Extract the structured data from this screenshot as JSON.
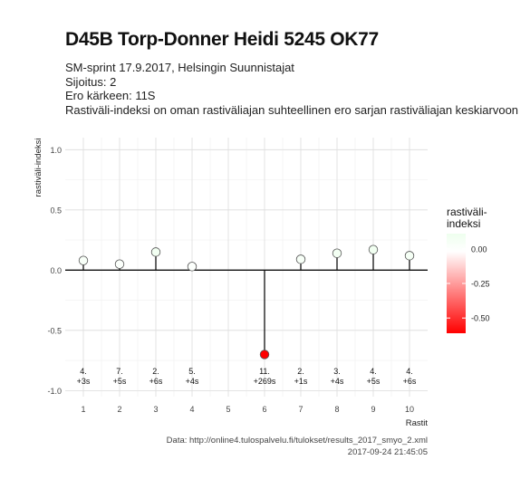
{
  "header": {
    "title": "D45B Torp-Donner Heidi 5245 OK77",
    "subtitle_lines": [
      "SM-sprint 17.9.2017, Helsingin Suunnistajat",
      "Sijoitus: 2",
      "Ero kärkeen: 11S",
      "Rastiväli-indeksi on oman rastiväliajan suhteellinen ero sarjan rastiväliajan keskiarvoon"
    ]
  },
  "caption": {
    "line1": "Data: http://online4.tulospalvelu.fi/tulokset/results_2017_smyo_2.xml",
    "line2": "2017-09-24 21:45:05"
  },
  "legend": {
    "title_line1": "rastiväli-",
    "title_line2": "indeksi",
    "ticks": [
      0.0,
      -0.25,
      -0.5
    ],
    "tick_labels": [
      "0.00",
      "-0.25",
      "-0.50"
    ],
    "colors": {
      "top": "#eeffee",
      "mid": "#ffffff",
      "bottom": "#ff0000"
    }
  },
  "chart_data": {
    "type": "lollipop",
    "xlabel": "Rastit",
    "ylabel": "rastiväli-indeksi",
    "xlim": [
      0.5,
      10.5
    ],
    "ylim": [
      -1.05,
      1.1
    ],
    "x_ticks": [
      1,
      2,
      3,
      4,
      5,
      6,
      7,
      8,
      9,
      10
    ],
    "y_ticks": [
      -1.0,
      -0.5,
      0.0,
      0.5,
      1.0
    ],
    "y_tick_labels": [
      "-1.0",
      "-0.5",
      "0.0",
      "0.5",
      "1.0"
    ],
    "grid": true,
    "points": [
      {
        "x": 1,
        "y": 0.08,
        "rank": "4.",
        "diff": "+3s"
      },
      {
        "x": 2,
        "y": 0.05,
        "rank": "7.",
        "diff": "+5s"
      },
      {
        "x": 3,
        "y": 0.15,
        "rank": "2.",
        "diff": "+6s"
      },
      {
        "x": 4,
        "y": 0.03,
        "rank": "5.",
        "diff": "+4s"
      },
      {
        "x": 6,
        "y": -0.7,
        "rank": "11.",
        "diff": "+269s"
      },
      {
        "x": 7,
        "y": 0.09,
        "rank": "2.",
        "diff": "+1s"
      },
      {
        "x": 8,
        "y": 0.14,
        "rank": "3.",
        "diff": "+4s"
      },
      {
        "x": 9,
        "y": 0.17,
        "rank": "4.",
        "diff": "+5s"
      },
      {
        "x": 10,
        "y": 0.12,
        "rank": "4.",
        "diff": "+6s"
      }
    ],
    "label_y": -0.9
  }
}
